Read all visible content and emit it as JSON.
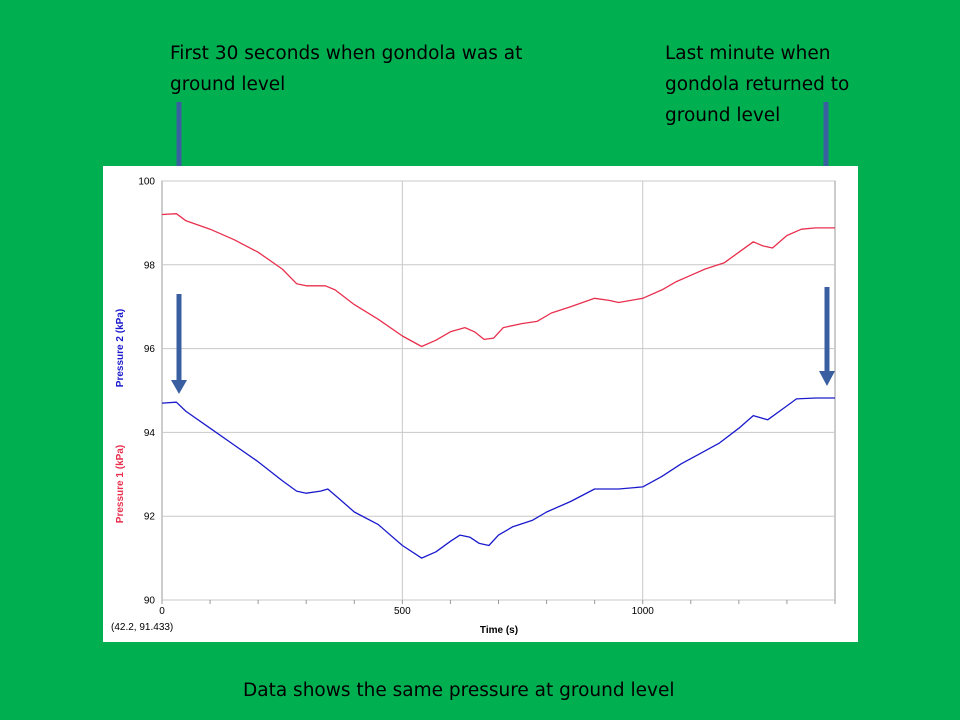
{
  "annotations": {
    "left": "First 30 seconds when gondola was at ground level",
    "right": "Last minute when gondola returned to ground level",
    "caption": "Data shows the same pressure at ground level"
  },
  "colors": {
    "background": "#00b050",
    "arrow": "#3a5fa0",
    "pressure1": "#e8304e",
    "pressure2": "#1a1acc"
  },
  "icons": {
    "arrow": "down-arrow-icon"
  },
  "readout": "(42.2, 91.433)",
  "chart_data": {
    "type": "line",
    "xlabel": "Time (s)",
    "ylabel_series1": "Pressure 1 (kPa)",
    "ylabel_series2": "Pressure 2 (kPa)",
    "xlim": [
      0,
      1400
    ],
    "ylim": [
      90,
      100
    ],
    "x_ticks": [
      0,
      500,
      1000
    ],
    "y_ticks": [
      90,
      92,
      94,
      96,
      98,
      100
    ],
    "grid": true,
    "series": [
      {
        "name": "Pressure 1 (kPa)",
        "points": [
          [
            0,
            99.2
          ],
          [
            30,
            99.22
          ],
          [
            50,
            99.05
          ],
          [
            100,
            98.85
          ],
          [
            150,
            98.6
          ],
          [
            200,
            98.3
          ],
          [
            250,
            97.9
          ],
          [
            280,
            97.55
          ],
          [
            300,
            97.5
          ],
          [
            340,
            97.5
          ],
          [
            360,
            97.4
          ],
          [
            400,
            97.05
          ],
          [
            450,
            96.7
          ],
          [
            500,
            96.3
          ],
          [
            540,
            96.05
          ],
          [
            570,
            96.2
          ],
          [
            600,
            96.4
          ],
          [
            630,
            96.5
          ],
          [
            650,
            96.4
          ],
          [
            670,
            96.22
          ],
          [
            690,
            96.25
          ],
          [
            710,
            96.5
          ],
          [
            750,
            96.6
          ],
          [
            780,
            96.65
          ],
          [
            810,
            96.85
          ],
          [
            850,
            97.0
          ],
          [
            900,
            97.2
          ],
          [
            930,
            97.15
          ],
          [
            950,
            97.1
          ],
          [
            1000,
            97.2
          ],
          [
            1040,
            97.4
          ],
          [
            1070,
            97.6
          ],
          [
            1100,
            97.75
          ],
          [
            1130,
            97.9
          ],
          [
            1170,
            98.05
          ],
          [
            1200,
            98.3
          ],
          [
            1230,
            98.55
          ],
          [
            1250,
            98.45
          ],
          [
            1270,
            98.4
          ],
          [
            1300,
            98.7
          ],
          [
            1330,
            98.85
          ],
          [
            1360,
            98.88
          ],
          [
            1400,
            98.88
          ]
        ]
      },
      {
        "name": "Pressure 2 (kPa)",
        "points": [
          [
            0,
            94.7
          ],
          [
            30,
            94.72
          ],
          [
            50,
            94.5
          ],
          [
            100,
            94.1
          ],
          [
            150,
            93.7
          ],
          [
            200,
            93.3
          ],
          [
            250,
            92.85
          ],
          [
            280,
            92.6
          ],
          [
            300,
            92.55
          ],
          [
            330,
            92.6
          ],
          [
            345,
            92.65
          ],
          [
            370,
            92.4
          ],
          [
            400,
            92.1
          ],
          [
            450,
            91.8
          ],
          [
            500,
            91.3
          ],
          [
            540,
            91.0
          ],
          [
            570,
            91.15
          ],
          [
            600,
            91.4
          ],
          [
            620,
            91.55
          ],
          [
            640,
            91.5
          ],
          [
            660,
            91.35
          ],
          [
            680,
            91.3
          ],
          [
            700,
            91.55
          ],
          [
            730,
            91.75
          ],
          [
            770,
            91.9
          ],
          [
            800,
            92.1
          ],
          [
            850,
            92.35
          ],
          [
            900,
            92.65
          ],
          [
            950,
            92.65
          ],
          [
            1000,
            92.7
          ],
          [
            1040,
            92.95
          ],
          [
            1080,
            93.25
          ],
          [
            1120,
            93.5
          ],
          [
            1160,
            93.75
          ],
          [
            1200,
            94.1
          ],
          [
            1230,
            94.4
          ],
          [
            1260,
            94.3
          ],
          [
            1290,
            94.55
          ],
          [
            1320,
            94.8
          ],
          [
            1360,
            94.82
          ],
          [
            1400,
            94.82
          ]
        ]
      }
    ]
  }
}
